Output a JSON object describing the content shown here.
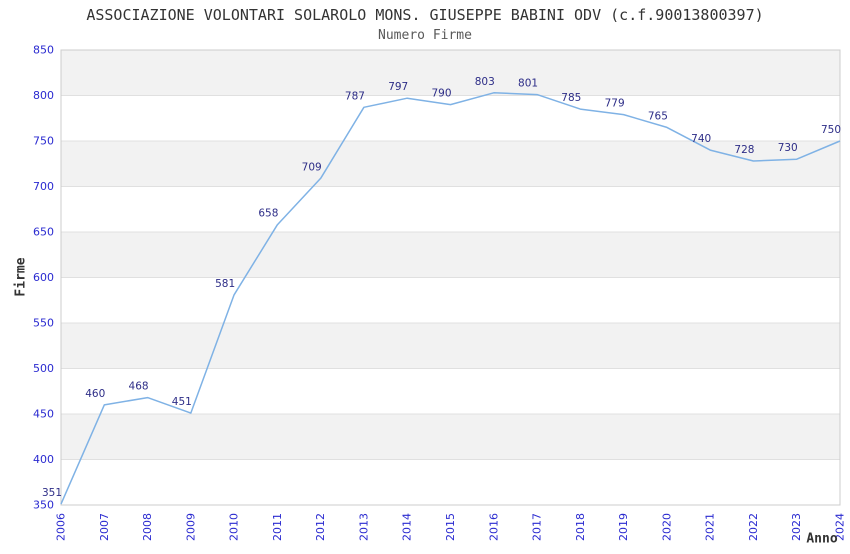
{
  "header": {
    "title": "ASSOCIAZIONE VOLONTARI SOLAROLO MONS. GIUSEPPE BABINI ODV (c.f.90013800397)",
    "subtitle": "Numero Firme"
  },
  "chart_data": {
    "type": "line",
    "title": "ASSOCIAZIONE VOLONTARI SOLAROLO MONS. GIUSEPPE BABINI ODV (c.f.90013800397)",
    "subtitle": "Numero Firme",
    "xlabel": "Anno",
    "ylabel": "Firme",
    "categories": [
      "2006",
      "2007",
      "2008",
      "2009",
      "2010",
      "2011",
      "2012",
      "2013",
      "2014",
      "2015",
      "2016",
      "2017",
      "2018",
      "2019",
      "2020",
      "2021",
      "2022",
      "2023",
      "2024"
    ],
    "values": [
      351,
      460,
      468,
      451,
      581,
      658,
      709,
      787,
      797,
      790,
      803,
      801,
      785,
      779,
      765,
      740,
      728,
      730,
      750
    ],
    "ylim": [
      350,
      850
    ],
    "ytick_step": 50,
    "grid": true,
    "legend": "none",
    "banded_background": true,
    "point_labels_visible": true,
    "colors": {
      "line": "#7fb2e5",
      "data_label": "#2d2d87",
      "tick_label": "#2a2ad0",
      "band": "#f2f2f2",
      "gridline": "#e0e0e0",
      "border": "#cccccc",
      "title": "#333333",
      "subtitle": "#595959",
      "axis_label": "#333333",
      "background": "#ffffff"
    }
  }
}
